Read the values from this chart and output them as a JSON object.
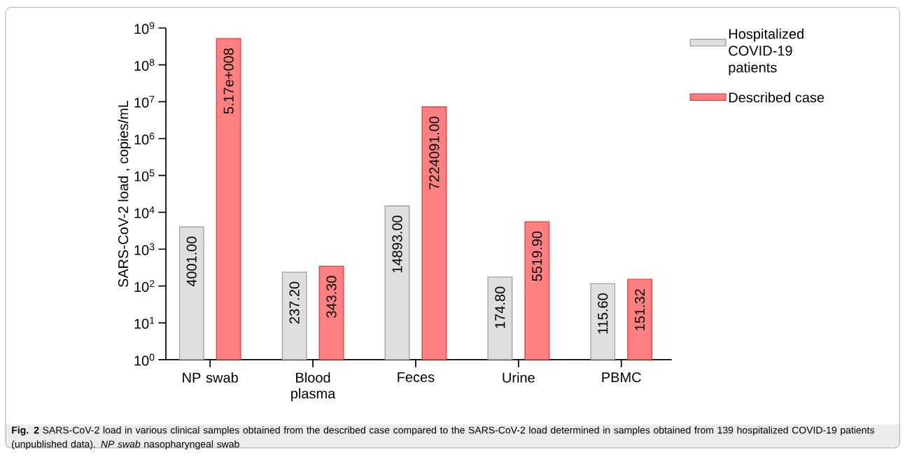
{
  "chart_data": {
    "type": "bar",
    "ylabel": "SARS-CoV-2 load , copies/mL",
    "categories": [
      "NP swab",
      "Blood plasma",
      "Feces",
      "Urine",
      "PBMC"
    ],
    "series": [
      {
        "name": "Hospitalized COVID-19 patients",
        "color": "#dedede",
        "values": [
          4001.0,
          237.2,
          14893.0,
          174.8,
          115.6
        ],
        "value_labels": [
          "4001.00",
          "237.20",
          "14893.00",
          "174.80",
          "115.60"
        ]
      },
      {
        "name": "Described case",
        "color": "#ff8080",
        "values": [
          517000000,
          343.3,
          7224091.0,
          5519.9,
          151.32
        ],
        "value_labels": [
          "5.17e+008",
          "343.30",
          "7224091.00",
          "5519.90",
          "151.32"
        ]
      }
    ],
    "log": "y",
    "ylim": [
      1,
      1000000000
    ],
    "yticks": [
      {
        "value": 1,
        "label": "10$^{0}$"
      },
      {
        "value": 10,
        "label": "10$^{1}$"
      },
      {
        "value": 100,
        "label": "10$^{2}$"
      },
      {
        "value": 1000,
        "label": "10$^{3}$"
      },
      {
        "value": 10000,
        "label": "10$^{4}$"
      },
      {
        "value": 100000,
        "label": "10$^{5}$"
      },
      {
        "value": 1000000,
        "label": "10$^{6}$"
      },
      {
        "value": 10000000,
        "label": "10$^{7}$"
      },
      {
        "value": 100000000,
        "label": "10$^{8}$"
      },
      {
        "value": 1000000000,
        "label": "10$^{9}$"
      }
    ],
    "grid": false,
    "legend": "right",
    "annotations": [
      "**Fig. 2**  SARS-CoV-2 load in various clinical samples obtained from the described case compared to the SARS-CoV-2 load determined in samples obtained from 139 hospitalized COVID-19 patients (unpublished data). *NP swab* nasopharyngeal swab"
    ]
  }
}
